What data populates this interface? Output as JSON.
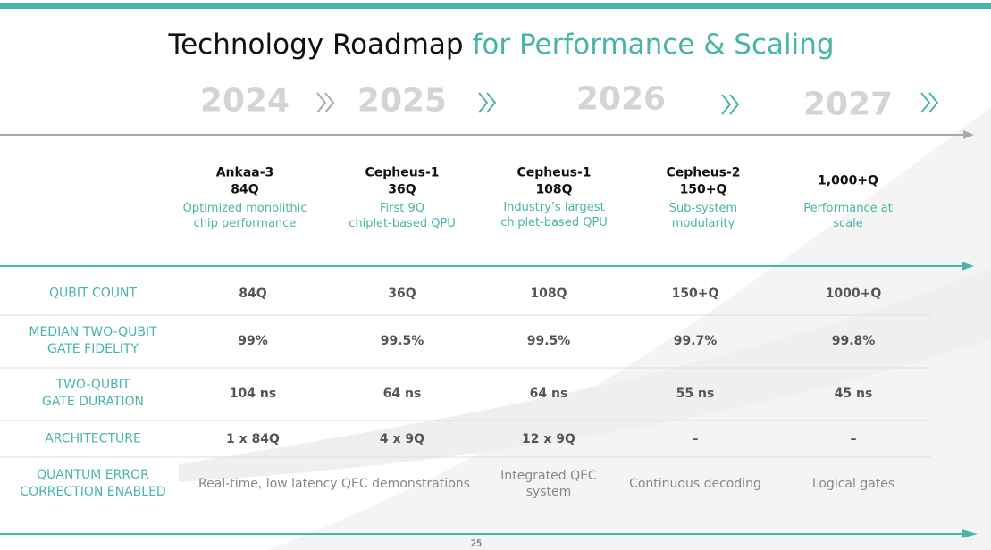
{
  "header": {
    "title_main": "Technology Roadmap",
    "title_accent": "for Performance & Scaling"
  },
  "years": [
    "2024",
    "2025",
    "2026",
    "2027"
  ],
  "chips": [
    {
      "name": "Ankaa-3",
      "qubits": "84Q",
      "description": "Optimized monolithic\nchip performance"
    },
    {
      "name": "Cepheus-1",
      "qubits": "36Q",
      "description": "First 9Q\nchiplet-based QPU"
    },
    {
      "name": "Cepheus-1",
      "qubits": "108Q",
      "description": "Industry’s largest\nchiplet-based QPU"
    },
    {
      "name": "Cepheus-2",
      "qubits": "150+Q",
      "description": "Sub-system\nmodularity"
    },
    {
      "name": "1,000+Q",
      "description": "Performance at\nscale"
    }
  ],
  "table": {
    "rows": [
      {
        "label": "QUBIT COUNT",
        "cells": [
          "84Q",
          "36Q",
          "108Q",
          "150+Q",
          "1000+Q"
        ]
      },
      {
        "label": "MEDIAN TWO-QUBIT\nGATE FIDELITY",
        "cells": [
          "99%",
          "99.5%",
          "99.5%",
          "99.7%",
          "99.8%"
        ]
      },
      {
        "label": "TWO-QUBIT\nGATE DURATION",
        "cells": [
          "104 ns",
          "64 ns",
          "64 ns",
          "55 ns",
          "45 ns"
        ]
      },
      {
        "label": "ARCHITECTURE",
        "cells": [
          "1 x 84Q",
          "4 x 9Q",
          "12 x 9Q",
          "–",
          "–"
        ]
      }
    ],
    "qec": {
      "label": "QUANTUM ERROR\nCORRECTION ENABLED",
      "cells": [
        "Real-time, low latency QEC demonstrations",
        "Integrated QEC\nsystem",
        "Continuous decoding",
        "Logical gates"
      ]
    }
  },
  "page_number": "25"
}
